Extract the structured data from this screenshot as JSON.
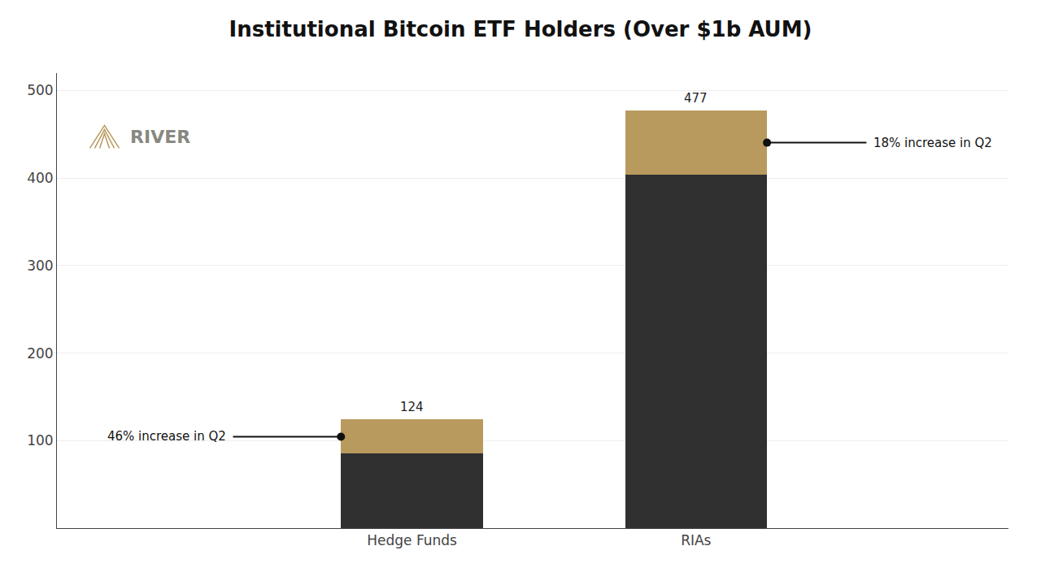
{
  "chart_data": {
    "type": "bar",
    "stacked": true,
    "title": "Institutional Bitcoin ETF Holders (Over $1b AUM)",
    "categories": [
      "Hedge Funds",
      "RIAs"
    ],
    "series": [
      {
        "color": "#303030",
        "values": [
          85,
          404
        ]
      },
      {
        "color": "#b89a5e",
        "values": [
          39,
          73
        ]
      }
    ],
    "totals": [
      124,
      477
    ],
    "ylim": [
      0,
      520
    ],
    "yticks": [
      100,
      200,
      300,
      400,
      500
    ],
    "grid": true,
    "annotations": [
      {
        "text": "46% increase in Q2",
        "category": "Hedge Funds"
      },
      {
        "text": "18% increase in Q2",
        "category": "RIAs"
      },
      {
        "text": "RIVER"
      }
    ]
  }
}
